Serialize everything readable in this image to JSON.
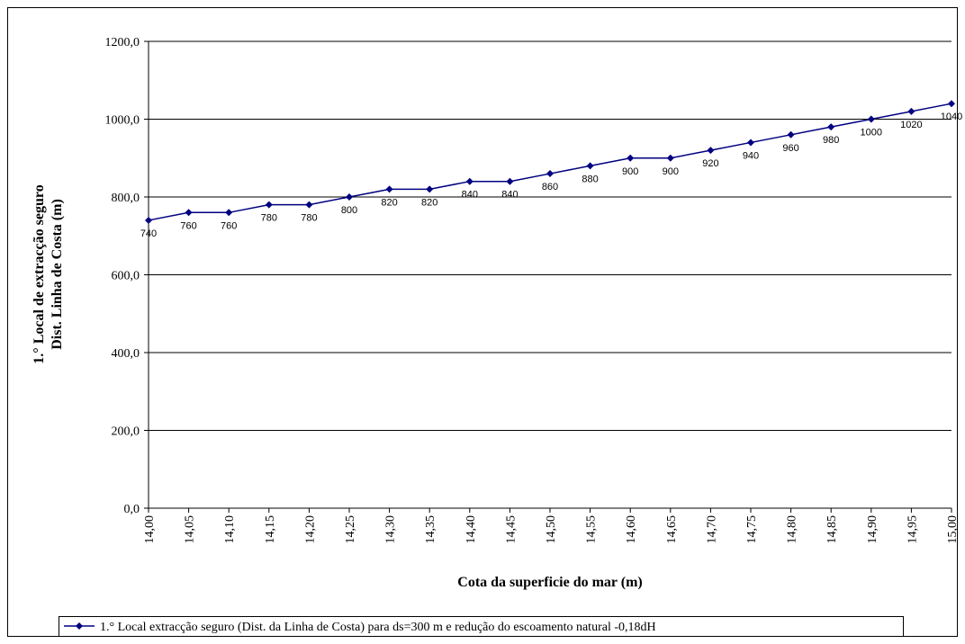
{
  "chart_data": {
    "type": "line",
    "xlabel": "Cota da superficie do mar (m)",
    "ylabel": [
      "1.° Local de extracção seguro",
      "Dist. Linha de Costa (m)"
    ],
    "categories": [
      "14,00",
      "14,05",
      "14,10",
      "14,15",
      "14,20",
      "14,25",
      "14,30",
      "14,35",
      "14,40",
      "14,45",
      "14,50",
      "14,55",
      "14,60",
      "14,65",
      "14,70",
      "14,75",
      "14,80",
      "14,85",
      "14,90",
      "14,95",
      "15,00"
    ],
    "series": [
      {
        "name": "1.° Local extracção seguro (Dist. da Linha de Costa) para ds=300 m e redução do escoamento natural -0,18dH",
        "color": "#000080",
        "values": [
          740,
          760,
          760,
          780,
          780,
          800,
          820,
          820,
          840,
          840,
          860,
          880,
          900,
          900,
          920,
          940,
          960,
          980,
          1000,
          1020,
          1040
        ]
      }
    ],
    "ylim": [
      0,
      1200
    ],
    "yticks": [
      {
        "value": 0,
        "label": "0,0"
      },
      {
        "value": 200,
        "label": "200,0"
      },
      {
        "value": 400,
        "label": "400,0"
      },
      {
        "value": 600,
        "label": "600,0"
      },
      {
        "value": 800,
        "label": "800,0"
      },
      {
        "value": 1000,
        "label": "1000,0"
      },
      {
        "value": 1200,
        "label": "1200,0"
      }
    ],
    "grid": true,
    "legend": "bottom"
  }
}
